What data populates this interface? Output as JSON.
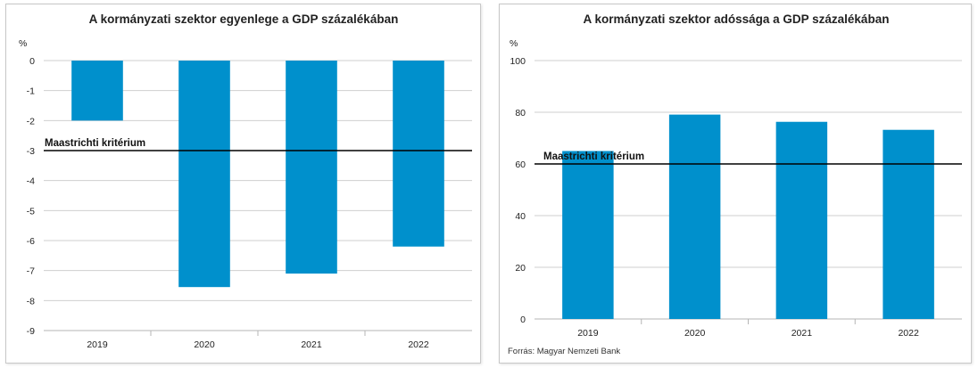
{
  "chart_data": [
    {
      "type": "bar",
      "title": "A kormányzati szektor egyenlege a GDP százalékában",
      "ylabel": "%",
      "categories": [
        "2019",
        "2020",
        "2021",
        "2022"
      ],
      "values": [
        -2.0,
        -7.55,
        -7.1,
        -6.2
      ],
      "ylim": [
        -9,
        0
      ],
      "yticks": [
        "0",
        "-1",
        "-2",
        "-3",
        "-4",
        "-5",
        "-6",
        "-7",
        "-8",
        "-9"
      ],
      "grid": true,
      "bar_color": "#0090cc",
      "reference_line": {
        "label": "Maastrichti kritérium",
        "value": -3
      }
    },
    {
      "type": "bar",
      "title": "A kormányzati szektor adóssága a GDP százalékában",
      "ylabel": "%",
      "categories": [
        "2019",
        "2020",
        "2021",
        "2022"
      ],
      "values": [
        65.0,
        79.1,
        76.3,
        73.2
      ],
      "ylim": [
        0,
        100
      ],
      "yticks": [
        "0",
        "20",
        "40",
        "60",
        "80",
        "100"
      ],
      "grid": true,
      "bar_color": "#0090cc",
      "reference_line": {
        "label": "Maastrichti kritérium",
        "value": 60
      }
    }
  ],
  "source": "Forrás: Magyar Nemzeti Bank"
}
